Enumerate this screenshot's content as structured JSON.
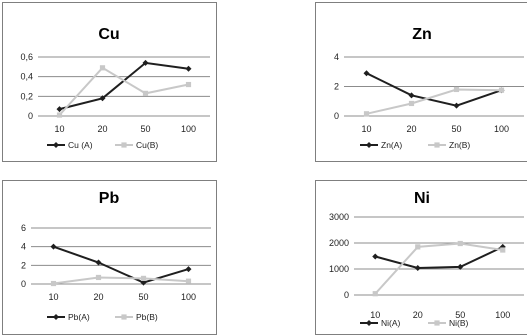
{
  "colors": {
    "series_a": "#1f1f1f",
    "series_b": "#c8c8c8",
    "grid": "#8c8c8c"
  },
  "chart_data": [
    {
      "type": "line",
      "title": "Cu",
      "categories": [
        "10",
        "20",
        "50",
        "100"
      ],
      "series": [
        {
          "name": "Cu (A)",
          "values": [
            0.07,
            0.18,
            0.54,
            0.48
          ]
        },
        {
          "name": "Cu(B)",
          "values": [
            0.01,
            0.49,
            0.23,
            0.32
          ]
        }
      ],
      "ylim": [
        0,
        0.6
      ],
      "yticks": [
        "0",
        "0,2",
        "0,4",
        "0,6"
      ],
      "legend": "bottom",
      "grid": true
    },
    {
      "type": "line",
      "title": "Zn",
      "categories": [
        "10",
        "20",
        "50",
        "100"
      ],
      "series": [
        {
          "name": "Zn(A)",
          "values": [
            2.9,
            1.4,
            0.7,
            1.75
          ]
        },
        {
          "name": "Zn(B)",
          "values": [
            0.15,
            0.85,
            1.8,
            1.75
          ]
        }
      ],
      "ylim": [
        0,
        4
      ],
      "yticks": [
        "0",
        "2",
        "4"
      ],
      "legend": "bottom",
      "grid": true
    },
    {
      "type": "line",
      "title": "Pb",
      "categories": [
        "10",
        "20",
        "50",
        "100"
      ],
      "series": [
        {
          "name": "Pb(A)",
          "values": [
            4.0,
            2.3,
            0.15,
            1.6
          ]
        },
        {
          "name": "Pb(B)",
          "values": [
            0.05,
            0.7,
            0.6,
            0.3
          ]
        }
      ],
      "ylim": [
        0,
        6
      ],
      "yticks": [
        "0",
        "2",
        "4",
        "6"
      ],
      "legend": "bottom",
      "grid": true
    },
    {
      "type": "line",
      "title": "Ni",
      "categories": [
        "10",
        "20",
        "50",
        "100"
      ],
      "series": [
        {
          "name": "Ni(A)",
          "values": [
            1480,
            1040,
            1080,
            1850
          ]
        },
        {
          "name": "Ni(B)",
          "values": [
            50,
            1850,
            1980,
            1730
          ]
        }
      ],
      "ylim": [
        0,
        3000
      ],
      "yticks": [
        "0",
        "1000",
        "2000",
        "3000"
      ],
      "legend": "bottom",
      "grid": true
    }
  ]
}
